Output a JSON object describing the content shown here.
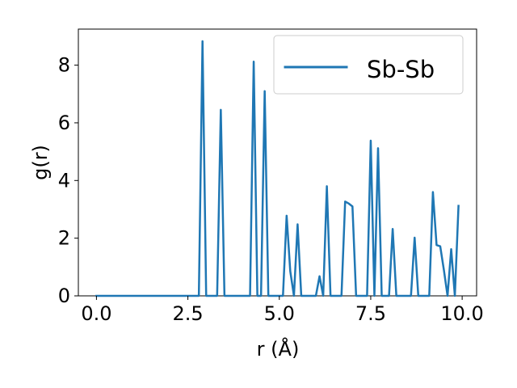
{
  "chart_data": {
    "type": "line",
    "xlabel": "r (Å)",
    "ylabel": "g(r)",
    "xlim": [
      -0.495,
      10.395
    ],
    "ylim": [
      0,
      9.25
    ],
    "xticks": [
      0.0,
      2.5,
      5.0,
      7.5,
      10.0
    ],
    "xtick_labels": [
      "0.0",
      "2.5",
      "5.0",
      "7.5",
      "10.0"
    ],
    "yticks": [
      0,
      2,
      4,
      6,
      8
    ],
    "ytick_labels": [
      "0",
      "2",
      "4",
      "6",
      "8"
    ],
    "legend_position": "top-right",
    "grid": false,
    "series": [
      {
        "name": "Sb-Sb",
        "color": "#1f77b4",
        "x": [
          0.0,
          0.1,
          0.2,
          0.3,
          0.4,
          0.5,
          0.6,
          0.7,
          0.8,
          0.9,
          1.0,
          1.1,
          1.2,
          1.3,
          1.4,
          1.5,
          1.6,
          1.7,
          1.8,
          1.9,
          2.0,
          2.1,
          2.2,
          2.3,
          2.4,
          2.5,
          2.6,
          2.7,
          2.8,
          2.9,
          3.0,
          3.1,
          3.2,
          3.3,
          3.4,
          3.5,
          3.6,
          3.7,
          3.8,
          3.9,
          4.0,
          4.1,
          4.2,
          4.3,
          4.4,
          4.5,
          4.6,
          4.7,
          4.8,
          4.9,
          5.0,
          5.1,
          5.2,
          5.3,
          5.4,
          5.5,
          5.6,
          5.7,
          5.8,
          5.9,
          6.0,
          6.1,
          6.2,
          6.3,
          6.4,
          6.5,
          6.6,
          6.7,
          6.8,
          6.9,
          7.0,
          7.1,
          7.2,
          7.3,
          7.4,
          7.5,
          7.6,
          7.7,
          7.8,
          7.9,
          8.0,
          8.1,
          8.2,
          8.3,
          8.4,
          8.5,
          8.6,
          8.7,
          8.8,
          8.9,
          9.0,
          9.1,
          9.2,
          9.3,
          9.4,
          9.5,
          9.6,
          9.7,
          9.8,
          9.9
        ],
        "y": [
          0,
          0,
          0,
          0,
          0,
          0,
          0,
          0,
          0,
          0,
          0,
          0,
          0,
          0,
          0,
          0,
          0,
          0,
          0,
          0,
          0,
          0,
          0,
          0,
          0,
          0,
          0,
          0,
          0,
          8.83,
          0,
          0,
          0,
          0,
          6.45,
          0,
          0,
          0,
          0,
          0,
          0,
          0,
          0,
          8.12,
          0,
          0,
          7.1,
          0,
          0,
          0,
          0,
          0,
          2.78,
          0.85,
          0,
          2.48,
          0,
          0,
          0,
          0,
          0,
          0.68,
          0,
          3.8,
          0,
          0,
          0,
          0,
          3.27,
          3.2,
          3.1,
          0,
          0,
          0,
          0,
          5.38,
          0,
          5.12,
          0,
          0,
          0,
          2.32,
          0,
          0,
          0,
          0,
          0,
          2.02,
          0,
          0,
          0,
          0,
          3.6,
          1.76,
          1.72,
          0.9,
          0,
          1.62,
          0,
          3.12
        ]
      }
    ]
  }
}
